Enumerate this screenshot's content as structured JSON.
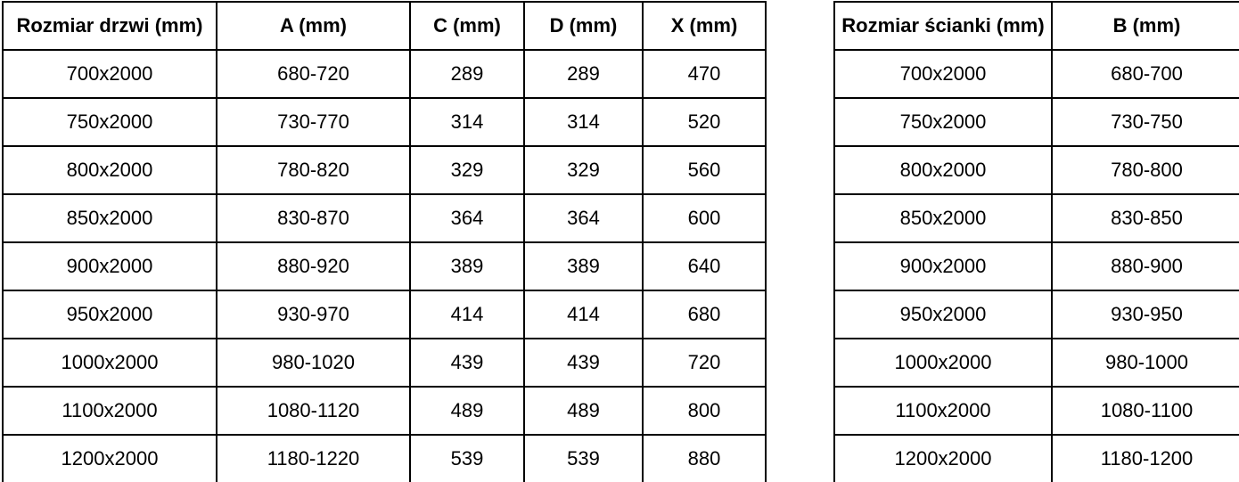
{
  "page": {
    "background_color": "#ffffff",
    "border_color": "#000000",
    "text_color": "#000000"
  },
  "tables": [
    {
      "name": "door-dimensions",
      "headers": [
        "Rozmiar drzwi (mm)",
        "A (mm)",
        "C (mm)",
        "D (mm)",
        "X (mm)"
      ],
      "rows": [
        [
          "700x2000",
          "680-720",
          "289",
          "289",
          "470"
        ],
        [
          "750x2000",
          "730-770",
          "314",
          "314",
          "520"
        ],
        [
          "800x2000",
          "780-820",
          "329",
          "329",
          "560"
        ],
        [
          "850x2000",
          "830-870",
          "364",
          "364",
          "600"
        ],
        [
          "900x2000",
          "880-920",
          "389",
          "389",
          "640"
        ],
        [
          "950x2000",
          "930-970",
          "414",
          "414",
          "680"
        ],
        [
          "1000x2000",
          "980-1020",
          "439",
          "439",
          "720"
        ],
        [
          "1100x2000",
          "1080-1120",
          "489",
          "489",
          "800"
        ],
        [
          "1200x2000",
          "1180-1220",
          "539",
          "539",
          "880"
        ]
      ]
    },
    {
      "name": "wall-dimensions",
      "headers": [
        "Rozmiar ścianki (mm)",
        "B (mm)"
      ],
      "rows": [
        [
          "700x2000",
          "680-700"
        ],
        [
          "750x2000",
          "730-750"
        ],
        [
          "800x2000",
          "780-800"
        ],
        [
          "850x2000",
          "830-850"
        ],
        [
          "900x2000",
          "880-900"
        ],
        [
          "950x2000",
          "930-950"
        ],
        [
          "1000x2000",
          "980-1000"
        ],
        [
          "1100x2000",
          "1080-1100"
        ],
        [
          "1200x2000",
          "1180-1200"
        ]
      ]
    }
  ]
}
